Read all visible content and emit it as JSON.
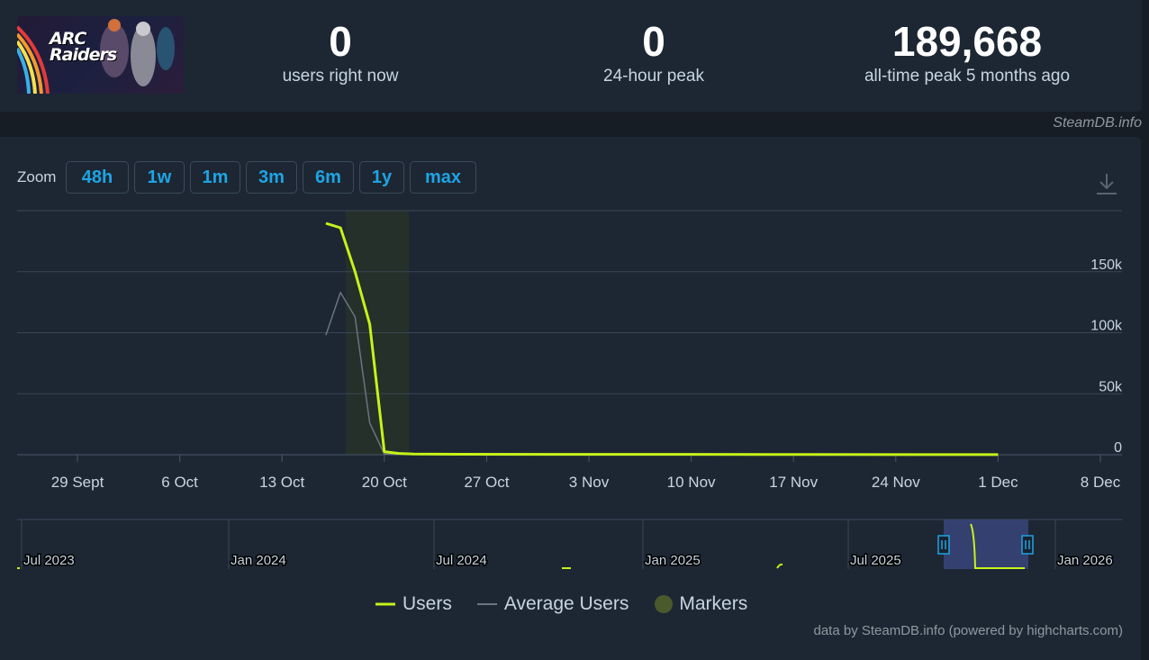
{
  "game": {
    "logo_lines": [
      "ARC",
      "Raiders"
    ]
  },
  "stats": {
    "current": {
      "value": "0",
      "label": "users right now"
    },
    "peak24": {
      "value": "0",
      "label": "24-hour peak"
    },
    "alltime": {
      "value": "189,668",
      "label": "all-time peak 5 months ago"
    }
  },
  "watermark": "SteamDB.info",
  "zoom": {
    "label": "Zoom",
    "buttons": [
      "48h",
      "1w",
      "1m",
      "3m",
      "6m",
      "1y",
      "max"
    ]
  },
  "legend": [
    {
      "label": "Users",
      "color": "#c6f21b",
      "kind": "line"
    },
    {
      "label": "Average Users",
      "color": "#6b7580",
      "kind": "line"
    },
    {
      "label": "Markers",
      "color": "#4a5a2c",
      "kind": "dot"
    }
  ],
  "credit": "data by SteamDB.info (powered by highcharts.com)",
  "chart_data": {
    "type": "line",
    "x_ticks": [
      "29 Sept",
      "6 Oct",
      "13 Oct",
      "20 Oct",
      "27 Oct",
      "3 Nov",
      "10 Nov",
      "17 Nov",
      "24 Nov",
      "1 Dec",
      "8 Dec"
    ],
    "y_ticks": [
      "0",
      "50k",
      "100k",
      "150k"
    ],
    "ylim": [
      0,
      200000
    ],
    "grid": true,
    "legend_position": "bottom-center",
    "series": [
      {
        "name": "Users",
        "color": "#c6f21b",
        "x": [
          "2025-10-16",
          "2025-10-17",
          "2025-10-18",
          "2025-10-19",
          "2025-10-20",
          "2025-10-21",
          "2025-10-22",
          "2025-10-25",
          "2025-11-01",
          "2025-11-15",
          "2025-12-01"
        ],
        "values": [
          189668,
          186000,
          150000,
          107000,
          2500,
          1000,
          600,
          400,
          300,
          200,
          100
        ]
      },
      {
        "name": "Average Users",
        "color": "#6b7580",
        "x": [
          "2025-10-16",
          "2025-10-17",
          "2025-10-18",
          "2025-10-19",
          "2025-10-20",
          "2025-10-21"
        ],
        "values": [
          98000,
          133000,
          113000,
          26000,
          500,
          300
        ]
      }
    ],
    "navigator": {
      "labels": [
        "Jul 2023",
        "Jan 2024",
        "Jul 2024",
        "Jan 2025",
        "Jul 2025",
        "Jan 2026"
      ]
    }
  }
}
